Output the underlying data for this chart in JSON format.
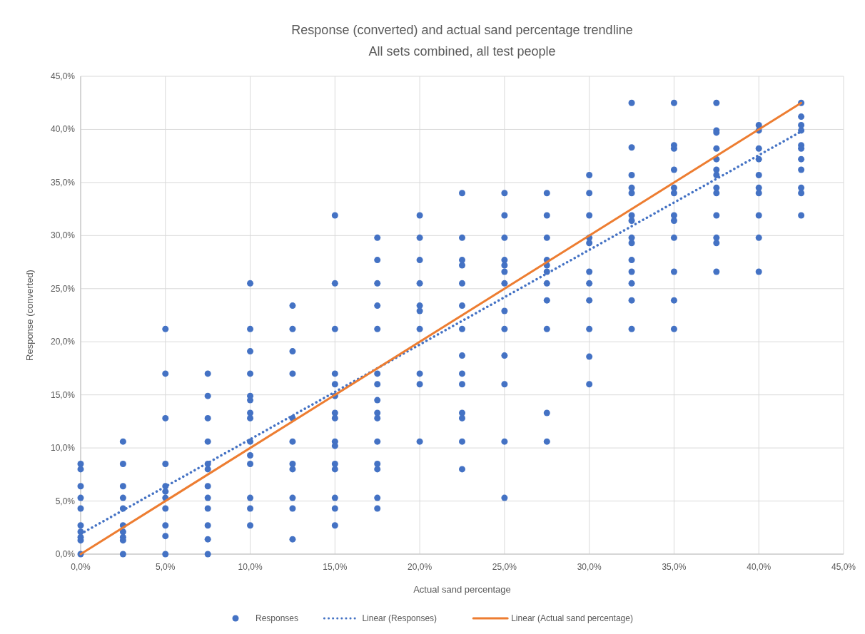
{
  "chart_data": {
    "type": "scatter",
    "title": "Response (converted) and actual sand percentage trendline",
    "subtitle": "All sets combined, all test people",
    "xlabel": "Actual sand percentage",
    "ylabel": "Response (converted)",
    "xlim": [
      0,
      45
    ],
    "ylim": [
      0,
      45
    ],
    "xticks": [
      {
        "value": 0,
        "label": "0,0%"
      },
      {
        "value": 5,
        "label": "5,0%"
      },
      {
        "value": 10,
        "label": "10,0%"
      },
      {
        "value": 15,
        "label": "15,0%"
      },
      {
        "value": 20,
        "label": "20,0%"
      },
      {
        "value": 25,
        "label": "25,0%"
      },
      {
        "value": 30,
        "label": "30,0%"
      },
      {
        "value": 35,
        "label": "35,0%"
      },
      {
        "value": 40,
        "label": "40,0%"
      },
      {
        "value": 45,
        "label": "45,0%"
      }
    ],
    "yticks": [
      {
        "value": 0,
        "label": "0,0%"
      },
      {
        "value": 5,
        "label": "5,0%"
      },
      {
        "value": 10,
        "label": "10,0%"
      },
      {
        "value": 15,
        "label": "15,0%"
      },
      {
        "value": 20,
        "label": "20,0%"
      },
      {
        "value": 25,
        "label": "25,0%"
      },
      {
        "value": 30,
        "label": "30,0%"
      },
      {
        "value": 35,
        "label": "35,0%"
      },
      {
        "value": 40,
        "label": "40,0%"
      },
      {
        "value": 45,
        "label": "45,0%"
      }
    ],
    "grid": true,
    "legend": "bottom",
    "series": [
      {
        "name": "Responses",
        "marker": "circle",
        "color": "#4472c4",
        "x": [
          0,
          0,
          0,
          0,
          0,
          0,
          0,
          0,
          0,
          0,
          2.5,
          2.5,
          2.5,
          2.5,
          2.5,
          2.5,
          2.5,
          2.5,
          2.5,
          2.5,
          5,
          5,
          5,
          5,
          5,
          5,
          5,
          5,
          5,
          5,
          5,
          7.5,
          7.5,
          7.5,
          7.5,
          7.5,
          7.5,
          7.5,
          7.5,
          7.5,
          7.5,
          7.5,
          7.5,
          10,
          10,
          10,
          10,
          10,
          10,
          10,
          10,
          10,
          10,
          10,
          10,
          10,
          10,
          12.5,
          12.5,
          12.5,
          12.5,
          12.5,
          12.5,
          12.5,
          12.5,
          12.5,
          12.5,
          12.5,
          15,
          15,
          15,
          15,
          15,
          15,
          15,
          15,
          15,
          15,
          15,
          15,
          15,
          15,
          15,
          17.5,
          17.5,
          17.5,
          17.5,
          17.5,
          17.5,
          17.5,
          17.5,
          17.5,
          17.5,
          17.5,
          17.5,
          17.5,
          17.5,
          17.5,
          20,
          20,
          20,
          20,
          20,
          20,
          20,
          20,
          20,
          20,
          22.5,
          22.5,
          22.5,
          22.5,
          22.5,
          22.5,
          22.5,
          22.5,
          22.5,
          22.5,
          22.5,
          22.5,
          22.5,
          22.5,
          25,
          25,
          25,
          25,
          25,
          25,
          25,
          25,
          25,
          25,
          25,
          25,
          25,
          27.5,
          27.5,
          27.5,
          27.5,
          27.5,
          27.5,
          27.5,
          27.5,
          27.5,
          27.5,
          27.5,
          30,
          30,
          30,
          30,
          30,
          30,
          30,
          30,
          30,
          30,
          30,
          32.5,
          32.5,
          32.5,
          32.5,
          32.5,
          32.5,
          32.5,
          32.5,
          32.5,
          32.5,
          32.5,
          32.5,
          32.5,
          32.5,
          35,
          35,
          35,
          35,
          35,
          35,
          35,
          35,
          35,
          35,
          35,
          35,
          37.5,
          37.5,
          37.5,
          37.5,
          37.5,
          37.5,
          37.5,
          37.5,
          37.5,
          37.5,
          37.5,
          37.5,
          37.5,
          40,
          40,
          40,
          40,
          40,
          40,
          40,
          40,
          40,
          40,
          42.5,
          42.5,
          42.5,
          42.5,
          42.5,
          42.5,
          42.5,
          42.5,
          42.5,
          42.5,
          42.5
        ],
        "values": [
          8.5,
          8.0,
          6.4,
          5.3,
          4.3,
          2.7,
          2.1,
          1.6,
          1.3,
          0,
          10.6,
          8.5,
          6.4,
          5.3,
          4.3,
          2.7,
          2.1,
          1.6,
          1.3,
          0,
          21.2,
          17.0,
          12.8,
          8.5,
          6.4,
          5.9,
          5.3,
          4.3,
          2.7,
          1.7,
          0,
          17.0,
          14.9,
          12.8,
          10.6,
          8.5,
          8.0,
          6.4,
          5.3,
          4.3,
          2.7,
          1.4,
          0,
          25.5,
          21.2,
          19.1,
          17.0,
          14.9,
          14.5,
          13.3,
          12.8,
          10.6,
          9.3,
          8.5,
          5.3,
          4.3,
          2.7,
          23.4,
          21.2,
          19.1,
          17.0,
          12.8,
          10.6,
          8.5,
          8.0,
          5.3,
          4.3,
          1.4,
          31.9,
          25.5,
          21.2,
          17.0,
          16.0,
          14.9,
          13.3,
          12.8,
          10.6,
          10.2,
          8.5,
          8.0,
          5.3,
          4.3,
          2.7,
          29.8,
          27.7,
          25.5,
          23.4,
          21.2,
          17.0,
          16.0,
          14.5,
          13.3,
          12.8,
          10.6,
          8.5,
          8.0,
          5.3,
          4.3,
          31.9,
          29.8,
          27.7,
          25.5,
          23.4,
          22.9,
          21.2,
          17.0,
          16.0,
          10.6,
          34.0,
          29.8,
          27.7,
          27.2,
          25.5,
          23.4,
          21.2,
          18.7,
          17.0,
          16.0,
          13.3,
          12.8,
          10.6,
          8.0,
          34.0,
          31.9,
          29.8,
          27.7,
          27.2,
          26.6,
          25.5,
          22.9,
          21.2,
          18.7,
          16.0,
          10.6,
          5.3,
          34.0,
          31.9,
          29.8,
          27.7,
          27.2,
          26.6,
          25.5,
          23.9,
          21.2,
          13.3,
          10.6,
          35.7,
          34.0,
          31.9,
          29.8,
          29.3,
          26.6,
          25.5,
          23.9,
          21.2,
          18.6,
          16.0,
          42.5,
          38.3,
          35.7,
          34.5,
          34.0,
          31.9,
          31.4,
          29.8,
          29.3,
          27.7,
          26.6,
          25.5,
          23.9,
          21.2,
          42.5,
          38.5,
          38.2,
          36.2,
          34.5,
          34.0,
          31.9,
          31.4,
          29.8,
          26.6,
          23.9,
          21.2,
          42.5,
          39.9,
          39.7,
          38.2,
          37.2,
          36.2,
          35.7,
          34.5,
          34.0,
          31.9,
          29.8,
          29.3,
          26.6,
          40.4,
          39.9,
          38.2,
          37.2,
          35.7,
          34.5,
          34.0,
          31.9,
          29.8,
          26.6,
          42.5,
          41.2,
          40.4,
          39.9,
          38.5,
          38.2,
          37.2,
          36.2,
          34.5,
          34.0,
          31.9
        ]
      },
      {
        "name": "Linear (Responses)",
        "type": "line",
        "marker": "none",
        "line_style": "dotted",
        "color": "#4472c4",
        "x": [
          0,
          42.5
        ],
        "values": [
          1.9,
          39.8
        ]
      },
      {
        "name": "Linear (Actual sand percentage)",
        "type": "line",
        "marker": "none",
        "line_style": "solid",
        "color": "#ed7d31",
        "x": [
          0,
          42.5
        ],
        "values": [
          0,
          42.5
        ]
      }
    ]
  }
}
